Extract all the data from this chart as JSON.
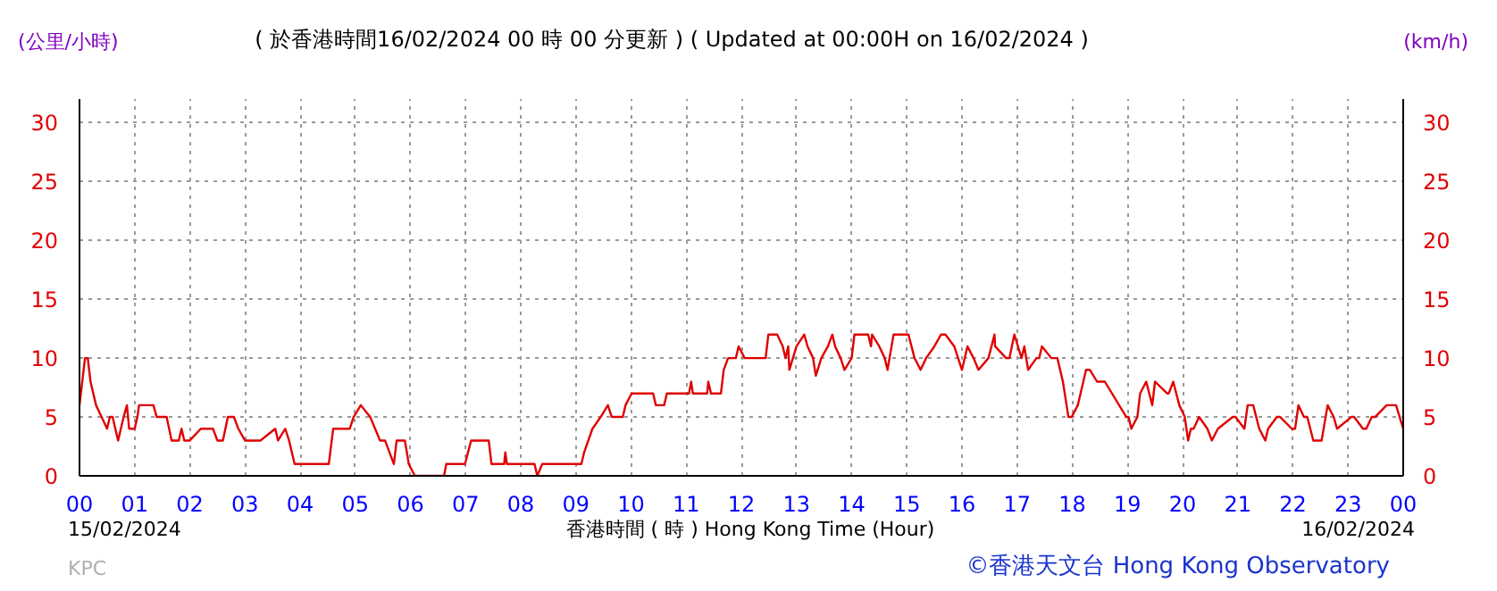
{
  "chart_data": {
    "type": "line",
    "title": "( 於香港時間16/02/2024 00 時 00 分更新 ) ( Updated at 00:00H on 16/02/2024 )",
    "xlabel": "香港時間 ( 時 ) Hong Kong Time (Hour)",
    "ylabel": "(公里/小時)",
    "y2label": "(km/h)",
    "annotations": [
      "15/02/2024",
      "16/02/2024",
      "KPC",
      "©香港天文台 Hong Kong Observatory"
    ],
    "x": [
      0.0,
      0.05,
      0.1,
      0.15,
      0.2,
      0.3,
      0.4,
      0.5,
      0.55,
      0.6,
      0.65,
      0.7,
      0.75,
      0.8,
      0.86,
      0.9,
      1.0,
      1.05,
      1.08,
      1.34,
      1.4,
      1.58,
      1.67,
      1.8,
      1.85,
      1.9,
      2.0,
      2.2,
      2.42,
      2.5,
      2.6,
      2.69,
      2.8,
      2.88,
      3.0,
      3.28,
      3.55,
      3.6,
      3.73,
      3.8,
      3.9,
      4.52,
      4.6,
      4.9,
      4.97,
      5.1,
      5.27,
      5.45,
      5.54,
      5.7,
      5.75,
      5.9,
      5.97,
      6.08,
      6.61,
      6.65,
      6.99,
      7.1,
      7.42,
      7.47,
      7.7,
      7.72,
      7.75,
      8.25,
      8.3,
      8.39,
      8.6,
      9.1,
      9.15,
      9.3,
      9.45,
      9.58,
      9.65,
      9.85,
      9.9,
      10.01,
      10.4,
      10.45,
      10.6,
      10.65,
      11.05,
      11.09,
      11.12,
      11.38,
      11.4,
      11.45,
      11.63,
      11.68,
      11.76,
      11.9,
      11.95,
      12.06,
      12.44,
      12.49,
      12.65,
      12.75,
      12.8,
      12.85,
      12.87,
      13.0,
      13.14,
      13.2,
      13.3,
      13.35,
      13.45,
      13.57,
      13.65,
      13.7,
      13.8,
      13.87,
      14.0,
      14.05,
      14.3,
      14.35,
      14.37,
      14.5,
      14.6,
      14.65,
      14.76,
      15.03,
      15.14,
      15.25,
      15.35,
      15.5,
      15.62,
      15.7,
      15.86,
      16.0,
      16.05,
      16.1,
      16.21,
      16.3,
      16.48,
      16.59,
      16.6,
      16.8,
      16.86,
      16.95,
      17.08,
      17.13,
      17.2,
      17.35,
      17.4,
      17.45,
      17.62,
      17.73,
      17.83,
      17.93,
      17.99,
      18.1,
      18.15,
      18.25,
      18.32,
      18.45,
      18.59,
      18.98,
      19.02,
      19.07,
      19.18,
      19.23,
      19.34,
      19.45,
      19.5,
      19.72,
      19.75,
      19.83,
      19.94,
      20.04,
      20.1,
      20.15,
      20.2,
      20.3,
      20.45,
      20.53,
      20.64,
      20.91,
      20.96,
      21.12,
      21.18,
      21.28,
      21.39,
      21.5,
      21.55,
      21.71,
      21.77,
      21.98,
      22.04,
      22.1,
      22.2,
      22.26,
      22.37,
      22.52,
      22.63,
      22.74,
      22.8,
      23.06,
      23.11,
      23.27,
      23.33,
      23.43,
      23.49,
      23.7,
      23.87,
      24.0
    ],
    "values": [
      6,
      8,
      10,
      10,
      8,
      6,
      5,
      4,
      5,
      5,
      4,
      3,
      4,
      5,
      6,
      4,
      4,
      5,
      6,
      6,
      5,
      5,
      3,
      3,
      4,
      3,
      3,
      4,
      4,
      3,
      3,
      5,
      5,
      4,
      3,
      3,
      4,
      3,
      4,
      3,
      1,
      1,
      4,
      4,
      5,
      6,
      5,
      3,
      3,
      1,
      3,
      3,
      1,
      0,
      0,
      1,
      1,
      3,
      3,
      1,
      1,
      2,
      1,
      1,
      0,
      1,
      1,
      1,
      2,
      4,
      5,
      6,
      5,
      5,
      6,
      7,
      7,
      6,
      6,
      7,
      7,
      8,
      7,
      7,
      8,
      7,
      7,
      9,
      10,
      10,
      11,
      10,
      10,
      12,
      12,
      11,
      10,
      11,
      9,
      11,
      12,
      11,
      10,
      8.5,
      10,
      11,
      12,
      11,
      10,
      9,
      10,
      12,
      12,
      11,
      12,
      11,
      10,
      9,
      12,
      12,
      10,
      9,
      10,
      11,
      12,
      12,
      11,
      9,
      10,
      11,
      10,
      9,
      10,
      12,
      11,
      10,
      10,
      12,
      10,
      11,
      9,
      10,
      10,
      11,
      10,
      10,
      8,
      5,
      5,
      6,
      7,
      9,
      9,
      8,
      8,
      5,
      5,
      4,
      5,
      7,
      8,
      6,
      8,
      7,
      7,
      8,
      6,
      5,
      3,
      4,
      4,
      5,
      4,
      3,
      4,
      5,
      5,
      4,
      6,
      6,
      4,
      3,
      4,
      5,
      5,
      4,
      4,
      6,
      5,
      5,
      3,
      3,
      6,
      5,
      4,
      5,
      5,
      4,
      4,
      5,
      5,
      6,
      6,
      4
    ],
    "color": "#e00000",
    "xlim": [
      0,
      24
    ],
    "xticks": [
      {
        "value": 0,
        "label": "00"
      },
      {
        "value": 1,
        "label": "01"
      },
      {
        "value": 2,
        "label": "02"
      },
      {
        "value": 3,
        "label": "03"
      },
      {
        "value": 4,
        "label": "04"
      },
      {
        "value": 5,
        "label": "05"
      },
      {
        "value": 6,
        "label": "06"
      },
      {
        "value": 7,
        "label": "07"
      },
      {
        "value": 8,
        "label": "08"
      },
      {
        "value": 9,
        "label": "09"
      },
      {
        "value": 10,
        "label": "10"
      },
      {
        "value": 11,
        "label": "11"
      },
      {
        "value": 12,
        "label": "12"
      },
      {
        "value": 13,
        "label": "13"
      },
      {
        "value": 14,
        "label": "14"
      },
      {
        "value": 15,
        "label": "15"
      },
      {
        "value": 16,
        "label": "16"
      },
      {
        "value": 17,
        "label": "17"
      },
      {
        "value": 18,
        "label": "18"
      },
      {
        "value": 19,
        "label": "19"
      },
      {
        "value": 20,
        "label": "20"
      },
      {
        "value": 21,
        "label": "21"
      },
      {
        "value": 22,
        "label": "22"
      },
      {
        "value": 23,
        "label": "23"
      },
      {
        "value": 24,
        "label": "00"
      }
    ],
    "ylim": [
      0,
      32
    ],
    "yticks": [
      0,
      5,
      10,
      15,
      20,
      25,
      30
    ],
    "y2lim": [
      0,
      32
    ],
    "y2ticks": [
      0,
      5,
      10,
      15,
      20,
      25,
      30
    ],
    "grid": true,
    "marker": "none",
    "line_style": "solid"
  }
}
